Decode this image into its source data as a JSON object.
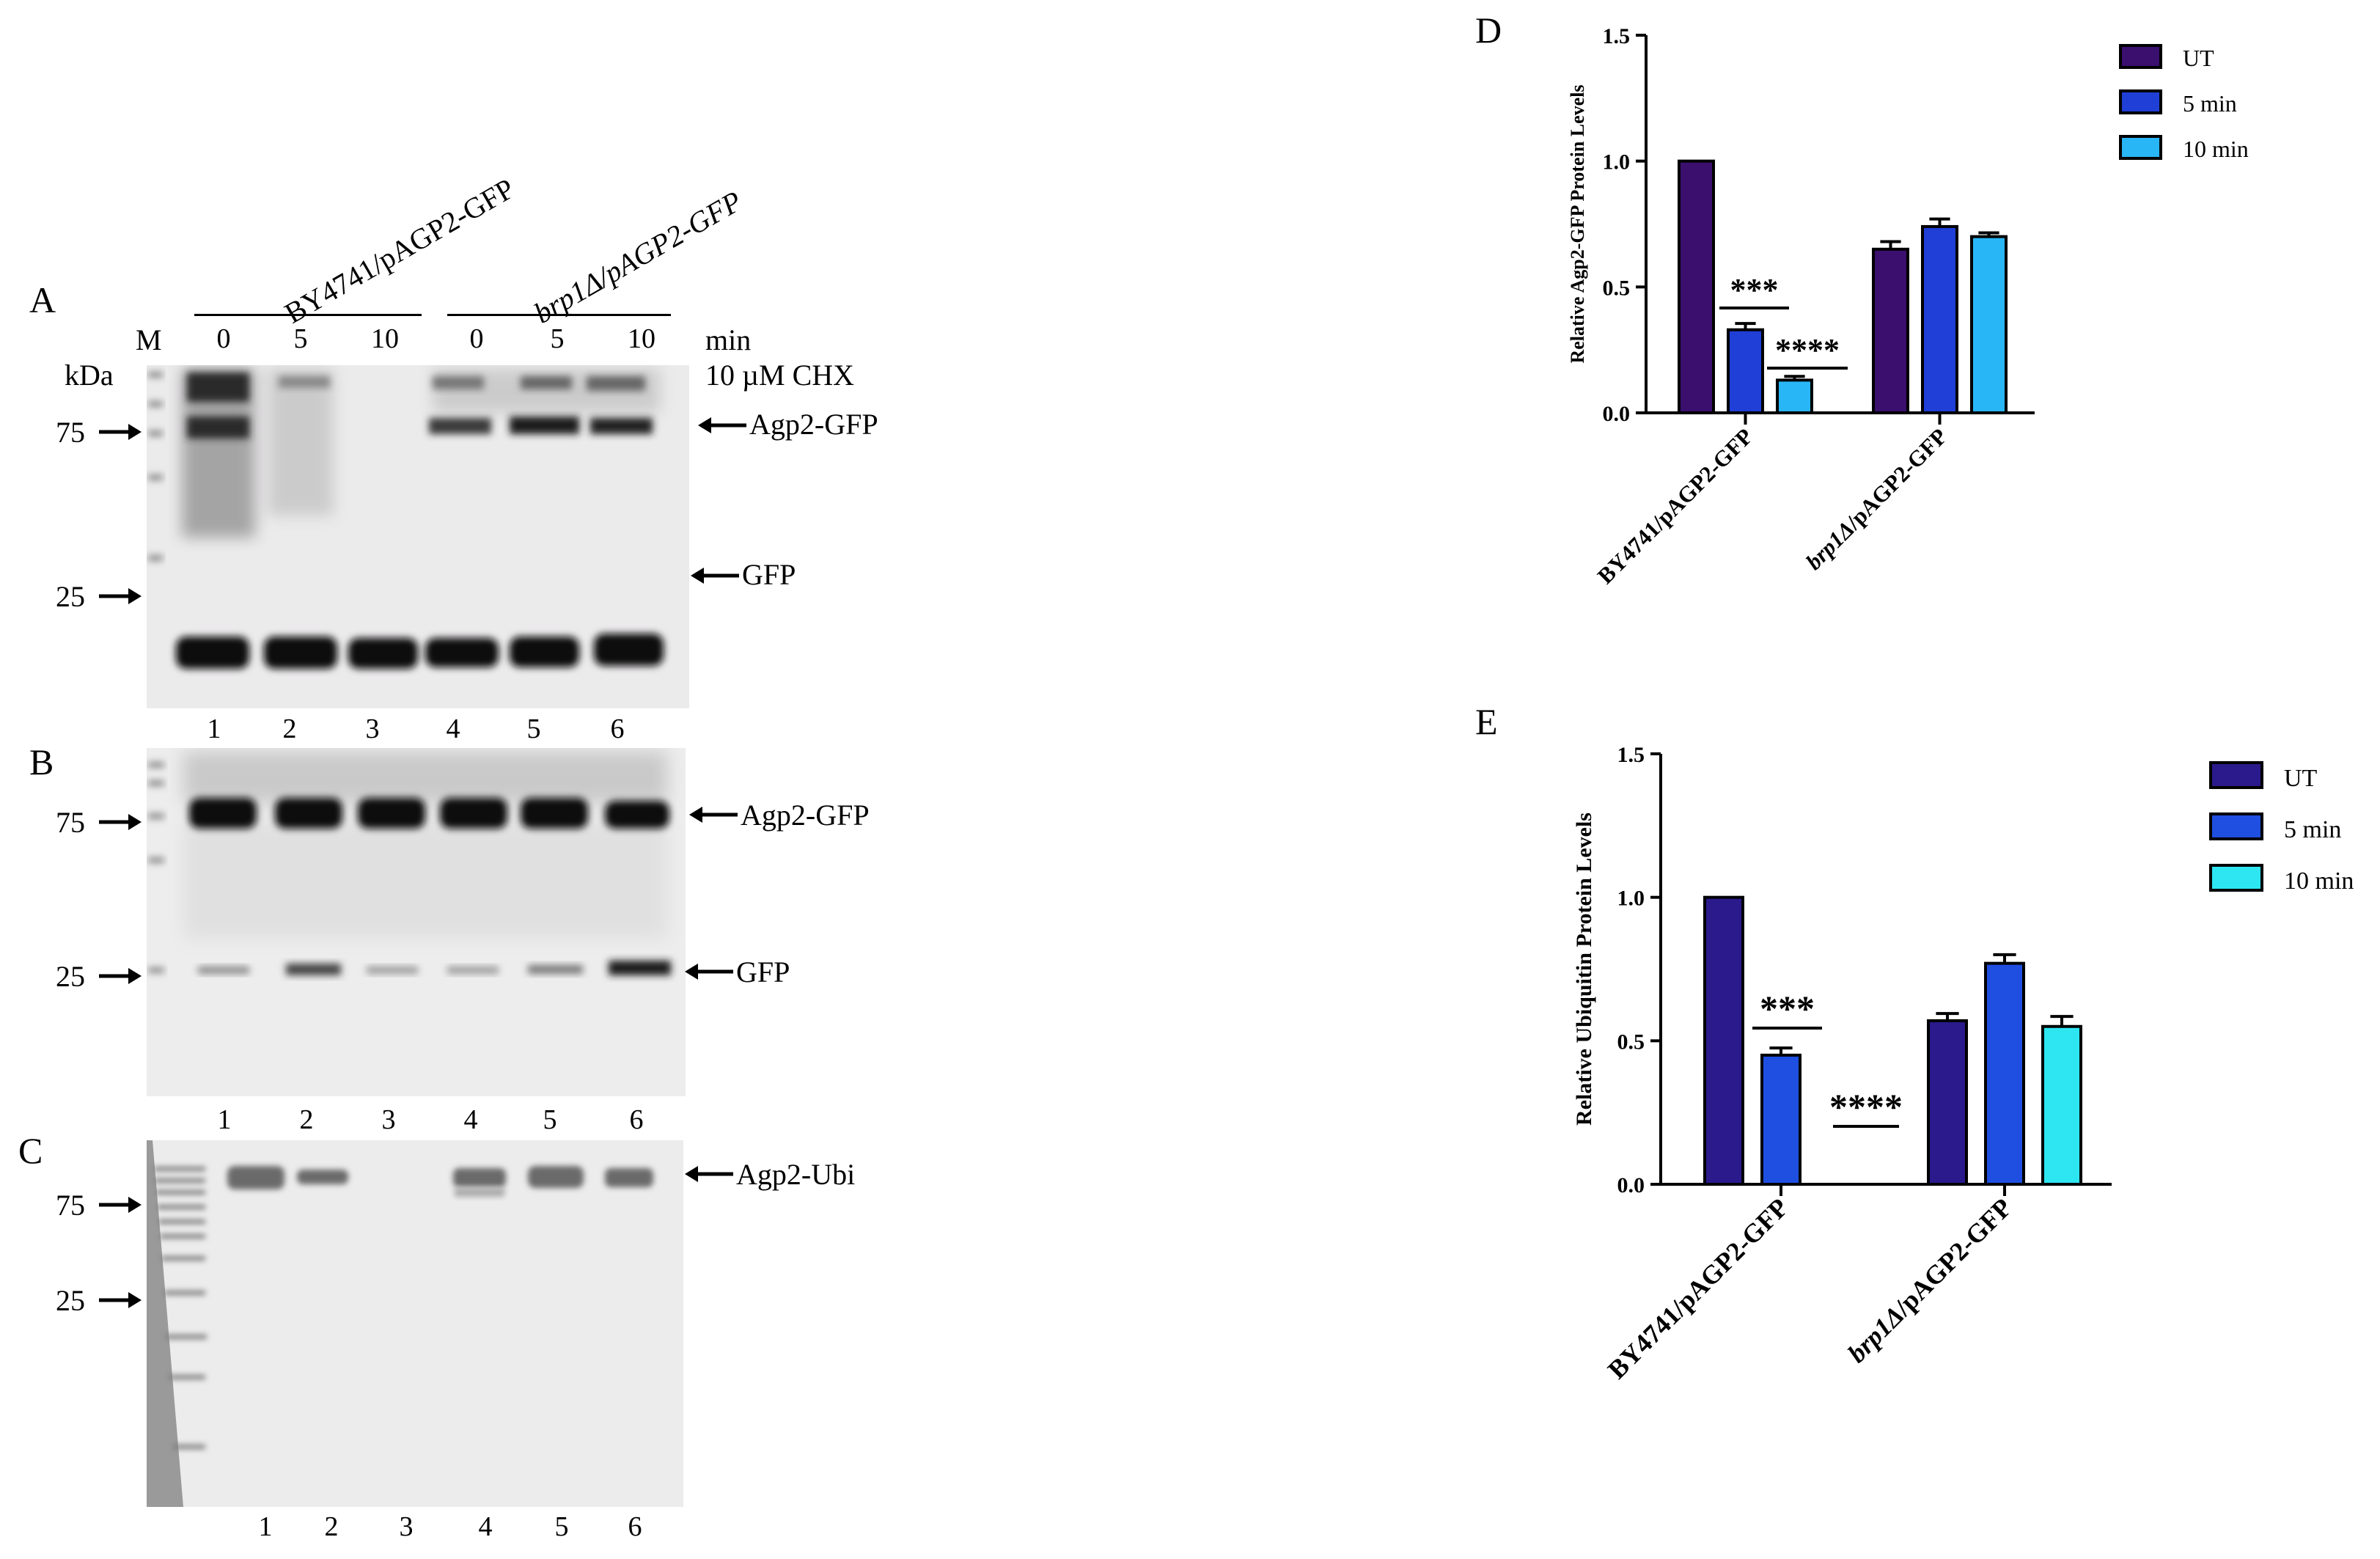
{
  "panels": {
    "A": "A",
    "B": "B",
    "C": "C",
    "D": "D",
    "E": "E"
  },
  "blot_a": {
    "marker": "M",
    "kda": "kDa",
    "strains": [
      "BY4741/pAGP2-GFP",
      "brp1Δ/pAGP2-GFP"
    ],
    "times": [
      "0",
      "5",
      "10",
      "0",
      "5",
      "10"
    ],
    "time_unit": "min",
    "treatment": "10 µM CHX",
    "markers": [
      "75",
      "25"
    ],
    "bands": [
      "Agp2-GFP",
      "GFP"
    ],
    "lanes": [
      "1",
      "2",
      "3",
      "4",
      "5",
      "6"
    ]
  },
  "blot_b": {
    "markers": [
      "75",
      "25"
    ],
    "bands": [
      "Agp2-GFP",
      "GFP"
    ],
    "lanes": [
      "1",
      "2",
      "3",
      "4",
      "5",
      "6"
    ]
  },
  "blot_c": {
    "markers": [
      "75",
      "25"
    ],
    "bands": [
      "Agp2-Ubi"
    ],
    "lanes": [
      "1",
      "2",
      "3",
      "4",
      "5",
      "6"
    ]
  },
  "colors": {
    "ut_d": "#3a0f6e",
    "min5_d": "#1f3fd6",
    "min10_d": "#29b6f6",
    "ut_e": "#2a1a8c",
    "min5_e": "#1f4fe0",
    "min10_e": "#2ee6f2"
  },
  "chart_data": [
    {
      "type": "bar",
      "panel": "D",
      "ylabel": "Relative Agp2-GFP Protein Levels",
      "ylim": [
        0,
        1.5
      ],
      "yticks": [
        "0.0",
        "0.5",
        "1.0",
        "1.5"
      ],
      "categories": [
        "BY4741/pAGP2-GFP",
        "brp1Δ/pAGP2-GFP"
      ],
      "series": [
        {
          "name": "UT",
          "values": [
            1.0,
            0.65
          ],
          "errors": [
            0,
            0.03
          ]
        },
        {
          "name": "5 min",
          "values": [
            0.33,
            0.74
          ],
          "errors": [
            0.025,
            0.03
          ]
        },
        {
          "name": "10 min",
          "values": [
            0.13,
            0.7
          ],
          "errors": [
            0.015,
            0.015
          ]
        }
      ],
      "annotations": [
        "***",
        "****"
      ],
      "legend": "top-right"
    },
    {
      "type": "bar",
      "panel": "E",
      "ylabel": "Relative Ubiquitin Protein Levels",
      "ylim": [
        0,
        1.5
      ],
      "yticks": [
        "0.0",
        "0.5",
        "1.0",
        "1.5"
      ],
      "categories": [
        "BY4741/pAGP2-GFP",
        "brp1Δ/pAGP2-GFP"
      ],
      "series": [
        {
          "name": "UT",
          "values": [
            1.0,
            0.57
          ],
          "errors": [
            0,
            0.025
          ]
        },
        {
          "name": "5 min",
          "values": [
            0.45,
            0.77
          ],
          "errors": [
            0.025,
            0.03
          ]
        },
        {
          "name": "10 min",
          "values": [
            0.0,
            0.55
          ],
          "errors": [
            0,
            0.035
          ]
        }
      ],
      "annotations": [
        "***",
        "****"
      ],
      "legend": "top-right"
    }
  ]
}
